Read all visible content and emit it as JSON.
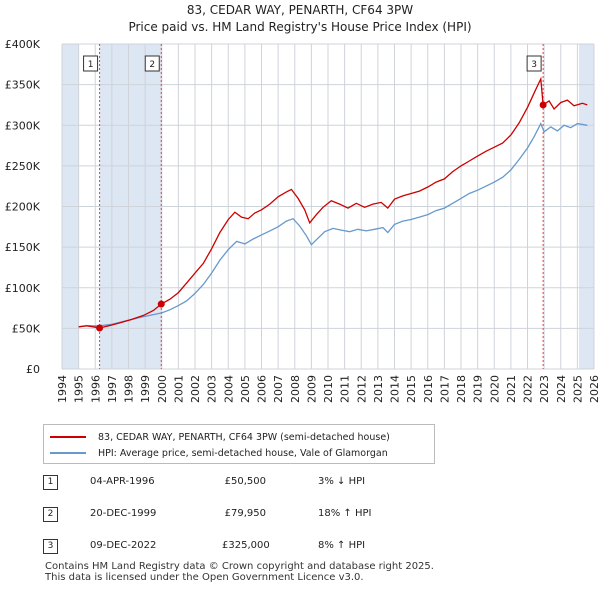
{
  "title": "83, CEDAR WAY, PENARTH, CF64 3PW",
  "subtitle": "Price paid vs. HM Land Registry's House Price Index (HPI)",
  "chart_data": {
    "type": "line",
    "x_range": [
      1994,
      2026
    ],
    "ylim": [
      0,
      400000
    ],
    "y_ticks": [
      {
        "value": 0,
        "label": "£0"
      },
      {
        "value": 50000,
        "label": "£50K"
      },
      {
        "value": 100000,
        "label": "£100K"
      },
      {
        "value": 150000,
        "label": "£150K"
      },
      {
        "value": 200000,
        "label": "£200K"
      },
      {
        "value": 250000,
        "label": "£250K"
      },
      {
        "value": 300000,
        "label": "£300K"
      },
      {
        "value": 350000,
        "label": "£350K"
      },
      {
        "value": 400000,
        "label": "£400K"
      }
    ],
    "x_ticks": [
      "1994",
      "1995",
      "1996",
      "1997",
      "1998",
      "1999",
      "2000",
      "2001",
      "2002",
      "2003",
      "2004",
      "2005",
      "2006",
      "2007",
      "2008",
      "2009",
      "2010",
      "2011",
      "2012",
      "2013",
      "2014",
      "2015",
      "2016",
      "2017",
      "2018",
      "2019",
      "2020",
      "2021",
      "2022",
      "2023",
      "2024",
      "2025",
      "2026"
    ],
    "grid": true,
    "shaded_periods": [
      [
        1994,
        1995
      ],
      [
        1996.26,
        1999.97
      ],
      [
        2025.1,
        2026
      ]
    ],
    "series": [
      {
        "name": "83, CEDAR WAY, PENARTH, CF64 3PW (semi-detached house)",
        "color": "#cc0000",
        "points": [
          [
            1995.0,
            52000
          ],
          [
            1995.5,
            53000
          ],
          [
            1996.0,
            51500
          ],
          [
            1996.26,
            50500
          ],
          [
            1996.8,
            53000
          ],
          [
            1997.5,
            57000
          ],
          [
            1998.2,
            61000
          ],
          [
            1998.9,
            66000
          ],
          [
            1999.5,
            72000
          ],
          [
            1999.97,
            79950
          ],
          [
            2000.5,
            86000
          ],
          [
            2001.0,
            94000
          ],
          [
            2001.5,
            106000
          ],
          [
            2002.0,
            118000
          ],
          [
            2002.5,
            130000
          ],
          [
            2003.0,
            148000
          ],
          [
            2003.5,
            168000
          ],
          [
            2004.0,
            184000
          ],
          [
            2004.4,
            193000
          ],
          [
            2004.8,
            187000
          ],
          [
            2005.2,
            185000
          ],
          [
            2005.6,
            192000
          ],
          [
            2006.0,
            196000
          ],
          [
            2006.5,
            203000
          ],
          [
            2007.0,
            212000
          ],
          [
            2007.5,
            218000
          ],
          [
            2007.8,
            221000
          ],
          [
            2008.2,
            210000
          ],
          [
            2008.6,
            196000
          ],
          [
            2008.9,
            180000
          ],
          [
            2009.3,
            190000
          ],
          [
            2009.7,
            199000
          ],
          [
            2010.2,
            207000
          ],
          [
            2010.7,
            203000
          ],
          [
            2011.2,
            198000
          ],
          [
            2011.7,
            204000
          ],
          [
            2012.2,
            199000
          ],
          [
            2012.7,
            203000
          ],
          [
            2013.2,
            205000
          ],
          [
            2013.6,
            198000
          ],
          [
            2014.0,
            209000
          ],
          [
            2014.5,
            213000
          ],
          [
            2015.0,
            216000
          ],
          [
            2015.5,
            219000
          ],
          [
            2016.0,
            224000
          ],
          [
            2016.5,
            230000
          ],
          [
            2017.0,
            234000
          ],
          [
            2017.5,
            243000
          ],
          [
            2018.0,
            250000
          ],
          [
            2018.5,
            256000
          ],
          [
            2019.0,
            262000
          ],
          [
            2019.5,
            268000
          ],
          [
            2020.0,
            273000
          ],
          [
            2020.5,
            278000
          ],
          [
            2021.0,
            288000
          ],
          [
            2021.5,
            303000
          ],
          [
            2022.0,
            322000
          ],
          [
            2022.4,
            340000
          ],
          [
            2022.8,
            357000
          ],
          [
            2022.94,
            325000
          ],
          [
            2023.3,
            330000
          ],
          [
            2023.6,
            320000
          ],
          [
            2024.0,
            328000
          ],
          [
            2024.4,
            331000
          ],
          [
            2024.8,
            324000
          ],
          [
            2025.3,
            327000
          ],
          [
            2025.6,
            325000
          ]
        ]
      },
      {
        "name": "HPI: Average price, semi-detached house, Vale of Glamorgan",
        "color": "#6699cc",
        "points": [
          [
            1995.0,
            52000
          ],
          [
            1995.5,
            53500
          ],
          [
            1996.0,
            53000
          ],
          [
            1996.5,
            53800
          ],
          [
            1997.0,
            55000
          ],
          [
            1997.5,
            57500
          ],
          [
            1998.2,
            61000
          ],
          [
            1998.9,
            64500
          ],
          [
            1999.5,
            67000
          ],
          [
            2000.0,
            69000
          ],
          [
            2000.5,
            73000
          ],
          [
            2001.0,
            78000
          ],
          [
            2001.5,
            84000
          ],
          [
            2002.0,
            93000
          ],
          [
            2002.5,
            104000
          ],
          [
            2003.0,
            118000
          ],
          [
            2003.5,
            134000
          ],
          [
            2004.0,
            147000
          ],
          [
            2004.5,
            157000
          ],
          [
            2005.0,
            154000
          ],
          [
            2005.5,
            160000
          ],
          [
            2006.0,
            165000
          ],
          [
            2006.5,
            170000
          ],
          [
            2007.0,
            175000
          ],
          [
            2007.5,
            182000
          ],
          [
            2007.9,
            185000
          ],
          [
            2008.3,
            176000
          ],
          [
            2008.7,
            164000
          ],
          [
            2009.0,
            153000
          ],
          [
            2009.4,
            161000
          ],
          [
            2009.8,
            169000
          ],
          [
            2010.3,
            173000
          ],
          [
            2010.8,
            171000
          ],
          [
            2011.3,
            169000
          ],
          [
            2011.8,
            172000
          ],
          [
            2012.3,
            170000
          ],
          [
            2012.8,
            172000
          ],
          [
            2013.3,
            174000
          ],
          [
            2013.6,
            168000
          ],
          [
            2014.0,
            178000
          ],
          [
            2014.5,
            182000
          ],
          [
            2015.0,
            184000
          ],
          [
            2015.5,
            187000
          ],
          [
            2016.0,
            190000
          ],
          [
            2016.5,
            195000
          ],
          [
            2017.0,
            198000
          ],
          [
            2017.5,
            204000
          ],
          [
            2018.0,
            210000
          ],
          [
            2018.5,
            216000
          ],
          [
            2019.0,
            220000
          ],
          [
            2019.5,
            225000
          ],
          [
            2020.0,
            230000
          ],
          [
            2020.5,
            236000
          ],
          [
            2021.0,
            245000
          ],
          [
            2021.5,
            258000
          ],
          [
            2022.0,
            272000
          ],
          [
            2022.4,
            286000
          ],
          [
            2022.8,
            302000
          ],
          [
            2023.0,
            292000
          ],
          [
            2023.4,
            298000
          ],
          [
            2023.8,
            293000
          ],
          [
            2024.2,
            300000
          ],
          [
            2024.6,
            297000
          ],
          [
            2025.0,
            302000
          ],
          [
            2025.6,
            300000
          ]
        ]
      }
    ],
    "sales": [
      {
        "label": "1",
        "year": 1996.26,
        "price": 50500
      },
      {
        "label": "2",
        "year": 1999.97,
        "price": 79950
      },
      {
        "label": "3",
        "year": 2022.94,
        "price": 325000
      }
    ]
  },
  "legend": {
    "items": [
      {
        "label": "83, CEDAR WAY, PENARTH, CF64 3PW (semi-detached house)",
        "color": "#cc0000"
      },
      {
        "label": "HPI: Average price, semi-detached house, Vale of Glamorgan",
        "color": "#6699cc"
      }
    ]
  },
  "sales_table": [
    {
      "num": "1",
      "date": "04-APR-1996",
      "price": "£50,500",
      "hpi": "3% ↓ HPI"
    },
    {
      "num": "2",
      "date": "20-DEC-1999",
      "price": "£79,950",
      "hpi": "18% ↑ HPI"
    },
    {
      "num": "3",
      "date": "09-DEC-2022",
      "price": "£325,000",
      "hpi": "8% ↑ HPI"
    }
  ],
  "footer": {
    "line1": "Contains HM Land Registry data © Crown copyright and database right 2025.",
    "line2": "This data is licensed under the Open Government Licence v3.0."
  }
}
